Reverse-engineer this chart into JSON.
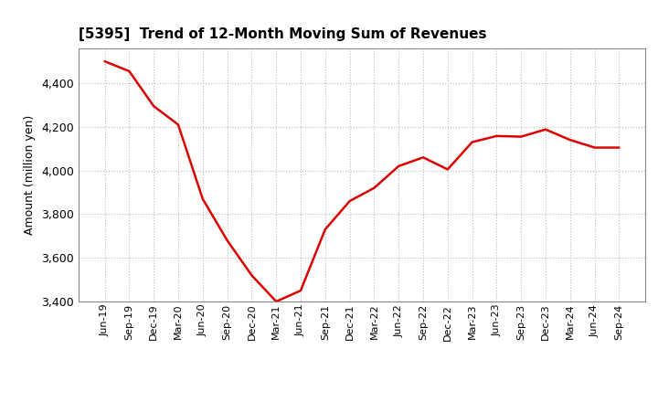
{
  "title": "[5395]  Trend of 12-Month Moving Sum of Revenues",
  "ylabel": "Amount (million yen)",
  "line_color": "#dd0000",
  "background_color": "#ffffff",
  "plot_bg_color": "#ffffff",
  "grid_color": "#bbbbbb",
  "ylim": [
    3400,
    4560
  ],
  "yticks": [
    3400,
    3600,
    3800,
    4000,
    4200,
    4400
  ],
  "x_labels": [
    "Jun-19",
    "Sep-19",
    "Dec-19",
    "Mar-20",
    "Jun-20",
    "Sep-20",
    "Dec-20",
    "Mar-21",
    "Jun-21",
    "Sep-21",
    "Dec-21",
    "Mar-22",
    "Jun-22",
    "Sep-22",
    "Dec-22",
    "Mar-23",
    "Jun-23",
    "Sep-23",
    "Dec-23",
    "Mar-24",
    "Jun-24",
    "Sep-24"
  ],
  "values": [
    4500,
    4455,
    4295,
    4210,
    3870,
    3680,
    3520,
    3400,
    3450,
    3730,
    3860,
    3920,
    4020,
    4060,
    4005,
    4130,
    4158,
    4155,
    4188,
    4140,
    4105,
    4105
  ]
}
